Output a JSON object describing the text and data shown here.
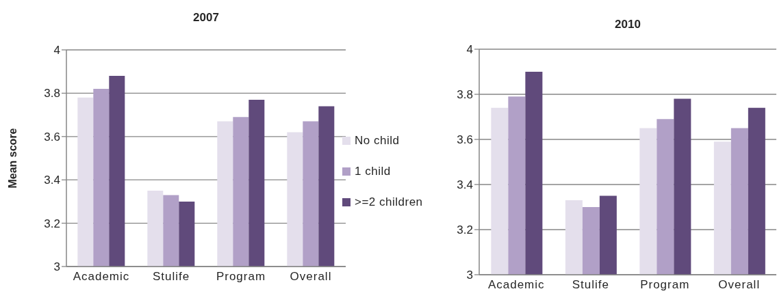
{
  "chart_data": [
    {
      "type": "bar",
      "title": "2007",
      "ylabel": "Mean score",
      "categories": [
        "Academic",
        "Stulife",
        "Program",
        "Overall"
      ],
      "series": [
        {
          "name": "No child",
          "color": "#e4dfec",
          "values": [
            3.78,
            3.35,
            3.67,
            3.62
          ]
        },
        {
          "name": "1 child",
          "color": "#b1a0c7",
          "values": [
            3.82,
            3.33,
            3.69,
            3.67
          ]
        },
        {
          "name": ">=2 children",
          "color": "#604a7b",
          "values": [
            3.88,
            3.3,
            3.77,
            3.74
          ]
        }
      ],
      "ylim": [
        3,
        4
      ],
      "yticks": [
        3,
        3.2,
        3.4,
        3.6,
        3.8,
        4
      ],
      "grid": "y",
      "legend": "right"
    },
    {
      "type": "bar",
      "title": "2010",
      "categories": [
        "Academic",
        "Stulife",
        "Program",
        "Overall"
      ],
      "series": [
        {
          "color": "#e4dfec",
          "values": [
            3.74,
            3.33,
            3.65,
            3.59
          ]
        },
        {
          "color": "#b1a0c7",
          "values": [
            3.79,
            3.3,
            3.69,
            3.65
          ]
        },
        {
          "color": "#604a7b",
          "values": [
            3.9,
            3.35,
            3.78,
            3.74
          ]
        }
      ],
      "ylim": [
        3,
        4
      ],
      "yticks": [
        3,
        3.2,
        3.4,
        3.6,
        3.8,
        4
      ],
      "grid": "y"
    }
  ]
}
